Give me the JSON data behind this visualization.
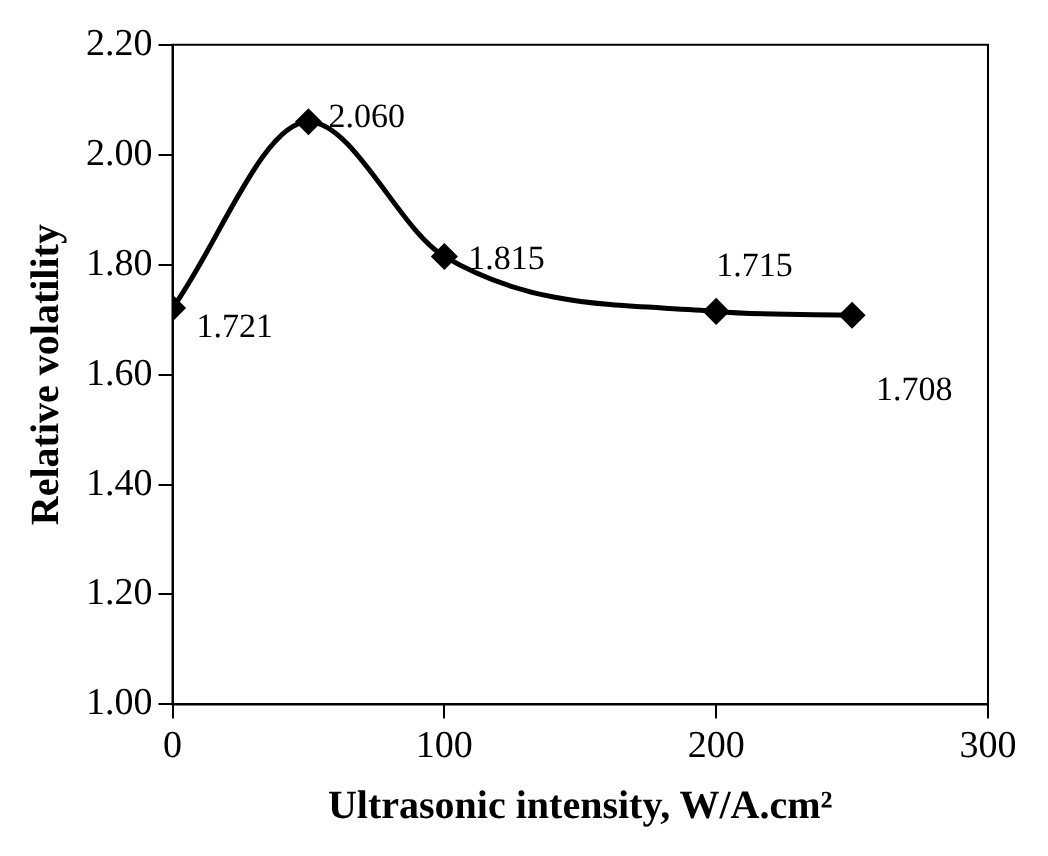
{
  "chart_data": {
    "type": "line",
    "xlabel": "Ultrasonic intensity, W/A.cm²",
    "ylabel": "Relative volatility",
    "x": [
      0,
      50,
      100,
      200,
      250
    ],
    "series": [
      {
        "color": "#000000",
        "values": [
          1.721,
          2.06,
          1.815,
          1.715,
          1.708
        ],
        "value_labels": [
          "1.721",
          "2.060",
          "1.815",
          "1.715",
          "1.708"
        ]
      }
    ],
    "xlim": [
      0,
      300
    ],
    "xticks": [
      0,
      100,
      200,
      300
    ],
    "ylim": [
      1,
      2.2
    ],
    "yticks": [
      {
        "value": 1,
        "label": "1.00"
      },
      {
        "value": 1.2,
        "label": "1.20"
      },
      {
        "value": 1.4,
        "label": "1.40"
      },
      {
        "value": 1.6,
        "label": "1.60"
      },
      {
        "value": 1.8,
        "label": "1.80"
      },
      {
        "value": 2,
        "label": "2.00"
      },
      {
        "value": 2.2,
        "label": "2.20"
      }
    ],
    "grid": false,
    "legend": false,
    "marker": "diamond",
    "line_style": "solid"
  }
}
